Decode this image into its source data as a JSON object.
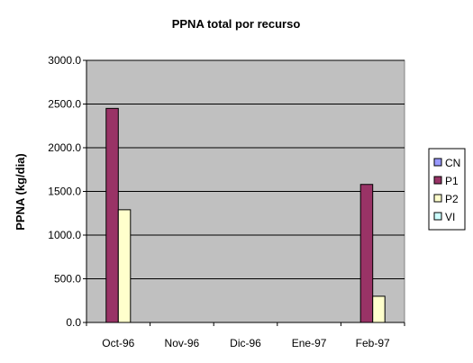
{
  "chart_data": {
    "type": "bar",
    "title": "PPNA total por recurso",
    "xlabel": "",
    "ylabel": "PPNA (kg/dia)",
    "categories": [
      "Oct-96",
      "Nov-96",
      "Dic-96",
      "Ene-97",
      "Feb-97"
    ],
    "ylim": [
      0,
      3000
    ],
    "yticks": [
      "0.0",
      "500.0",
      "1000.0",
      "1500.0",
      "2000.0",
      "2500.0",
      "3000.0"
    ],
    "ytick_values": [
      0,
      500,
      1000,
      1500,
      2000,
      2500,
      3000
    ],
    "grid": true,
    "legend_position": "right",
    "plot_background": "#c0c0c0",
    "series": [
      {
        "name": "CN",
        "color": "#9999ff",
        "values": [
          0,
          0,
          0,
          0,
          0
        ]
      },
      {
        "name": "P1",
        "color": "#993366",
        "values": [
          2450,
          0,
          0,
          0,
          1580
        ]
      },
      {
        "name": "P2",
        "color": "#ffffcc",
        "values": [
          1290,
          0,
          0,
          0,
          300
        ]
      },
      {
        "name": "VI",
        "color": "#ccffff",
        "values": [
          0,
          0,
          0,
          0,
          0
        ]
      }
    ]
  }
}
